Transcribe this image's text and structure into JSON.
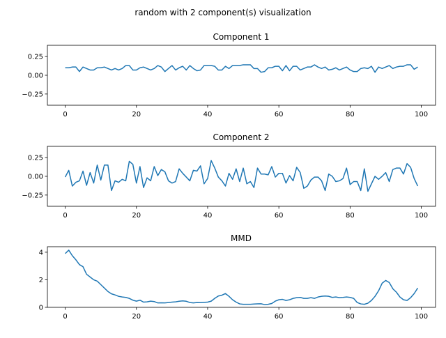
{
  "figure": {
    "suptitle": "random with 2 component(s) visualization"
  },
  "chart_data": [
    {
      "type": "line",
      "title": "Component 1",
      "xlabel": "",
      "ylabel": "",
      "xlim": [
        -5,
        104
      ],
      "ylim": [
        -0.4,
        0.4
      ],
      "xticks": [
        0,
        20,
        40,
        60,
        80,
        100
      ],
      "yticks": [
        -0.25,
        0.0,
        0.25
      ],
      "ytick_labels": [
        "−0.25",
        "0.00",
        "0.25"
      ],
      "grid": false,
      "color": "#1f77b4",
      "x": [
        0,
        1,
        2,
        3,
        4,
        5,
        6,
        7,
        8,
        9,
        10,
        11,
        12,
        13,
        14,
        15,
        16,
        17,
        18,
        19,
        20,
        21,
        22,
        23,
        24,
        25,
        26,
        27,
        28,
        29,
        30,
        31,
        32,
        33,
        34,
        35,
        36,
        37,
        38,
        39,
        40,
        41,
        42,
        43,
        44,
        45,
        46,
        47,
        48,
        49,
        50,
        51,
        52,
        53,
        54,
        55,
        56,
        57,
        58,
        59,
        60,
        61,
        62,
        63,
        64,
        65,
        66,
        67,
        68,
        69,
        70,
        71,
        72,
        73,
        74,
        75,
        76,
        77,
        78,
        79,
        80,
        81,
        82,
        83,
        84,
        85,
        86,
        87,
        88,
        89,
        90,
        91,
        92,
        93,
        94,
        95,
        96,
        97,
        98,
        99
      ],
      "values": [
        0.1,
        0.1,
        0.11,
        0.11,
        0.05,
        0.11,
        0.09,
        0.07,
        0.07,
        0.1,
        0.1,
        0.11,
        0.09,
        0.07,
        0.09,
        0.07,
        0.09,
        0.13,
        0.13,
        0.07,
        0.07,
        0.1,
        0.11,
        0.09,
        0.07,
        0.09,
        0.13,
        0.11,
        0.05,
        0.09,
        0.13,
        0.07,
        0.1,
        0.12,
        0.07,
        0.13,
        0.09,
        0.06,
        0.07,
        0.13,
        0.13,
        0.13,
        0.12,
        0.07,
        0.07,
        0.12,
        0.09,
        0.13,
        0.13,
        0.13,
        0.14,
        0.14,
        0.14,
        0.09,
        0.09,
        0.04,
        0.05,
        0.1,
        0.1,
        0.12,
        0.12,
        0.06,
        0.13,
        0.06,
        0.12,
        0.12,
        0.07,
        0.09,
        0.11,
        0.11,
        0.14,
        0.11,
        0.09,
        0.11,
        0.07,
        0.08,
        0.1,
        0.07,
        0.09,
        0.11,
        0.07,
        0.05,
        0.05,
        0.09,
        0.1,
        0.09,
        0.12,
        0.04,
        0.11,
        0.09,
        0.11,
        0.13,
        0.09,
        0.11,
        0.12,
        0.12,
        0.14,
        0.14,
        0.08,
        0.11
      ]
    },
    {
      "type": "line",
      "title": "Component 2",
      "xlabel": "",
      "ylabel": "",
      "xlim": [
        -5,
        104
      ],
      "ylim": [
        -0.4,
        0.4
      ],
      "xticks": [
        0,
        20,
        40,
        60,
        80,
        100
      ],
      "yticks": [
        -0.25,
        0.0,
        0.25
      ],
      "ytick_labels": [
        "−0.25",
        "0.00",
        "0.25"
      ],
      "grid": false,
      "color": "#1f77b4",
      "x": [
        0,
        1,
        2,
        3,
        4,
        5,
        6,
        7,
        8,
        9,
        10,
        11,
        12,
        13,
        14,
        15,
        16,
        17,
        18,
        19,
        20,
        21,
        22,
        23,
        24,
        25,
        26,
        27,
        28,
        29,
        30,
        31,
        32,
        33,
        34,
        35,
        36,
        37,
        38,
        39,
        40,
        41,
        42,
        43,
        44,
        45,
        46,
        47,
        48,
        49,
        50,
        51,
        52,
        53,
        54,
        55,
        56,
        57,
        58,
        59,
        60,
        61,
        62,
        63,
        64,
        65,
        66,
        67,
        68,
        69,
        70,
        71,
        72,
        73,
        74,
        75,
        76,
        77,
        78,
        79,
        80,
        81,
        82,
        83,
        84,
        85,
        86,
        87,
        88,
        89,
        90,
        91,
        92,
        93,
        94,
        95,
        96,
        97,
        98,
        99
      ],
      "values": [
        -0.01,
        0.08,
        -0.13,
        -0.08,
        -0.06,
        0.07,
        -0.12,
        0.05,
        -0.09,
        0.15,
        -0.05,
        0.15,
        0.15,
        -0.19,
        -0.06,
        -0.08,
        -0.04,
        -0.06,
        0.2,
        0.16,
        -0.09,
        0.13,
        -0.15,
        -0.02,
        -0.06,
        0.13,
        0.01,
        0.09,
        0.06,
        -0.06,
        -0.09,
        -0.07,
        0.1,
        0.04,
        -0.01,
        -0.06,
        0.08,
        0.07,
        0.14,
        -0.1,
        -0.03,
        0.21,
        0.11,
        -0.01,
        -0.06,
        -0.13,
        0.04,
        -0.04,
        0.1,
        -0.07,
        0.11,
        -0.1,
        -0.07,
        -0.15,
        0.11,
        0.03,
        0.03,
        0.02,
        0.13,
        -0.01,
        0.04,
        0.04,
        -0.09,
        0.01,
        -0.06,
        0.12,
        0.05,
        -0.16,
        -0.13,
        -0.05,
        -0.01,
        -0.01,
        -0.06,
        -0.19,
        0.03,
        0.0,
        -0.07,
        -0.06,
        -0.03,
        0.11,
        -0.11,
        -0.07,
        -0.07,
        -0.19,
        0.1,
        -0.2,
        -0.1,
        0.0,
        -0.04,
        0.0,
        0.05,
        -0.07,
        0.09,
        0.11,
        0.11,
        0.03,
        0.17,
        0.12,
        -0.03,
        -0.13
      ]
    },
    {
      "type": "line",
      "title": "MMD",
      "xlabel": "",
      "ylabel": "",
      "xlim": [
        -5,
        104
      ],
      "ylim": [
        0,
        4.4
      ],
      "xticks": [
        0,
        20,
        40,
        60,
        80,
        100
      ],
      "yticks": [
        0,
        2,
        4
      ],
      "ytick_labels": [
        "0",
        "2",
        "4"
      ],
      "grid": false,
      "color": "#1f77b4",
      "x": [
        0,
        1,
        2,
        3,
        4,
        5,
        6,
        7,
        8,
        9,
        10,
        11,
        12,
        13,
        14,
        15,
        16,
        17,
        18,
        19,
        20,
        21,
        22,
        23,
        24,
        25,
        26,
        27,
        28,
        29,
        30,
        31,
        32,
        33,
        34,
        35,
        36,
        37,
        38,
        39,
        40,
        41,
        42,
        43,
        44,
        45,
        46,
        47,
        48,
        49,
        50,
        51,
        52,
        53,
        54,
        55,
        56,
        57,
        58,
        59,
        60,
        61,
        62,
        63,
        64,
        65,
        66,
        67,
        68,
        69,
        70,
        71,
        72,
        73,
        74,
        75,
        76,
        77,
        78,
        79,
        80,
        81,
        82,
        83,
        84,
        85,
        86,
        87,
        88,
        89,
        90,
        91,
        92,
        93,
        94,
        95,
        96,
        97,
        98,
        99
      ],
      "values": [
        3.9,
        4.15,
        3.75,
        3.45,
        3.1,
        2.95,
        2.4,
        2.2,
        2.0,
        1.9,
        1.65,
        1.4,
        1.15,
        0.98,
        0.9,
        0.8,
        0.75,
        0.72,
        0.65,
        0.52,
        0.45,
        0.52,
        0.38,
        0.4,
        0.45,
        0.42,
        0.32,
        0.33,
        0.32,
        0.35,
        0.38,
        0.4,
        0.44,
        0.47,
        0.44,
        0.35,
        0.32,
        0.35,
        0.34,
        0.36,
        0.38,
        0.45,
        0.65,
        0.82,
        0.88,
        1.0,
        0.8,
        0.55,
        0.38,
        0.25,
        0.22,
        0.22,
        0.22,
        0.24,
        0.25,
        0.26,
        0.2,
        0.22,
        0.28,
        0.45,
        0.55,
        0.58,
        0.5,
        0.55,
        0.65,
        0.7,
        0.72,
        0.65,
        0.65,
        0.7,
        0.65,
        0.75,
        0.8,
        0.82,
        0.8,
        0.72,
        0.75,
        0.7,
        0.72,
        0.75,
        0.72,
        0.65,
        0.35,
        0.25,
        0.22,
        0.3,
        0.5,
        0.8,
        1.2,
        1.75,
        1.95,
        1.8,
        1.35,
        1.1,
        0.75,
        0.55,
        0.5,
        0.7,
        1.0,
        1.4
      ]
    }
  ]
}
